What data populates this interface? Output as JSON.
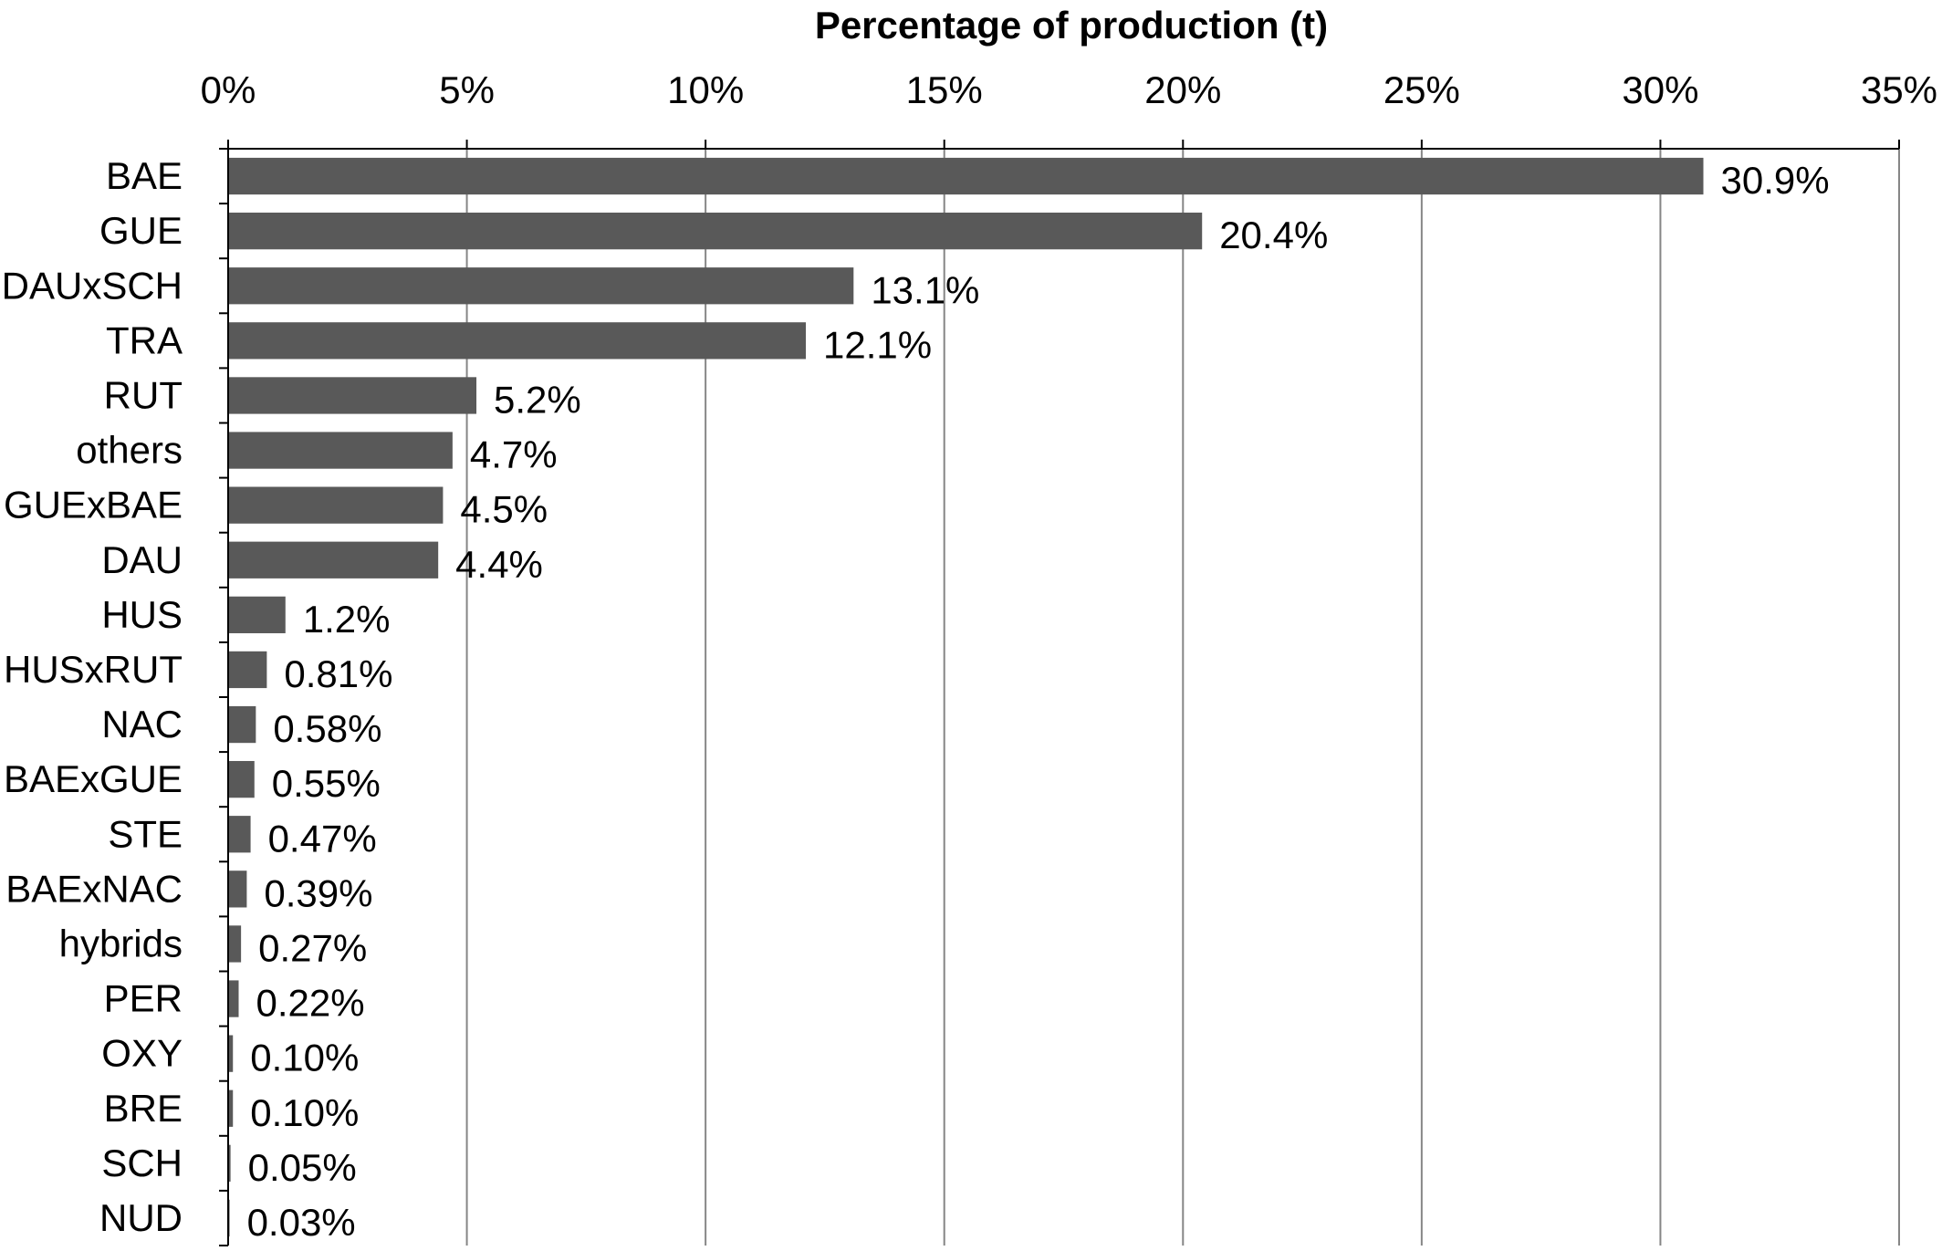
{
  "chart_data": {
    "type": "bar",
    "orientation": "horizontal",
    "title": "Percentage of production (t)",
    "xlabel": "Percentage of production (t)",
    "ylabel": "",
    "xlim": [
      0,
      35
    ],
    "x_ticks": [
      0,
      5,
      10,
      15,
      20,
      25,
      30,
      35
    ],
    "x_tick_labels": [
      "0%",
      "5%",
      "10%",
      "15%",
      "20%",
      "25%",
      "30%",
      "35%"
    ],
    "x_axis_position": "top",
    "grid": true,
    "legend": "none",
    "categories": [
      "BAE",
      "GUE",
      "DAUxSCH",
      "TRA",
      "RUT",
      "others",
      "GUExBAE",
      "DAU",
      "HUS",
      "HUSxRUT",
      "NAC",
      "BAExGUE",
      "STE",
      "BAExNAC",
      "hybrids",
      "PER",
      "OXY",
      "BRE",
      "SCH",
      "NUD"
    ],
    "values": [
      30.9,
      20.4,
      13.1,
      12.1,
      5.2,
      4.7,
      4.5,
      4.4,
      1.2,
      0.81,
      0.58,
      0.55,
      0.47,
      0.39,
      0.27,
      0.22,
      0.1,
      0.1,
      0.05,
      0.03
    ],
    "data_labels": [
      "30.9%",
      "20.4%",
      "13.1%",
      "12.1%",
      "5.2%",
      "4.7%",
      "4.5%",
      "4.4%",
      "1.2%",
      "0.81%",
      "0.58%",
      "0.55%",
      "0.47%",
      "0.39%",
      "0.27%",
      "0.22%",
      "0.10%",
      "0.10%",
      "0.05%",
      "0.03%"
    ],
    "colors": {
      "bar": "#595959",
      "grid": "#868686",
      "axis": "#000000",
      "text": "#000000"
    }
  }
}
